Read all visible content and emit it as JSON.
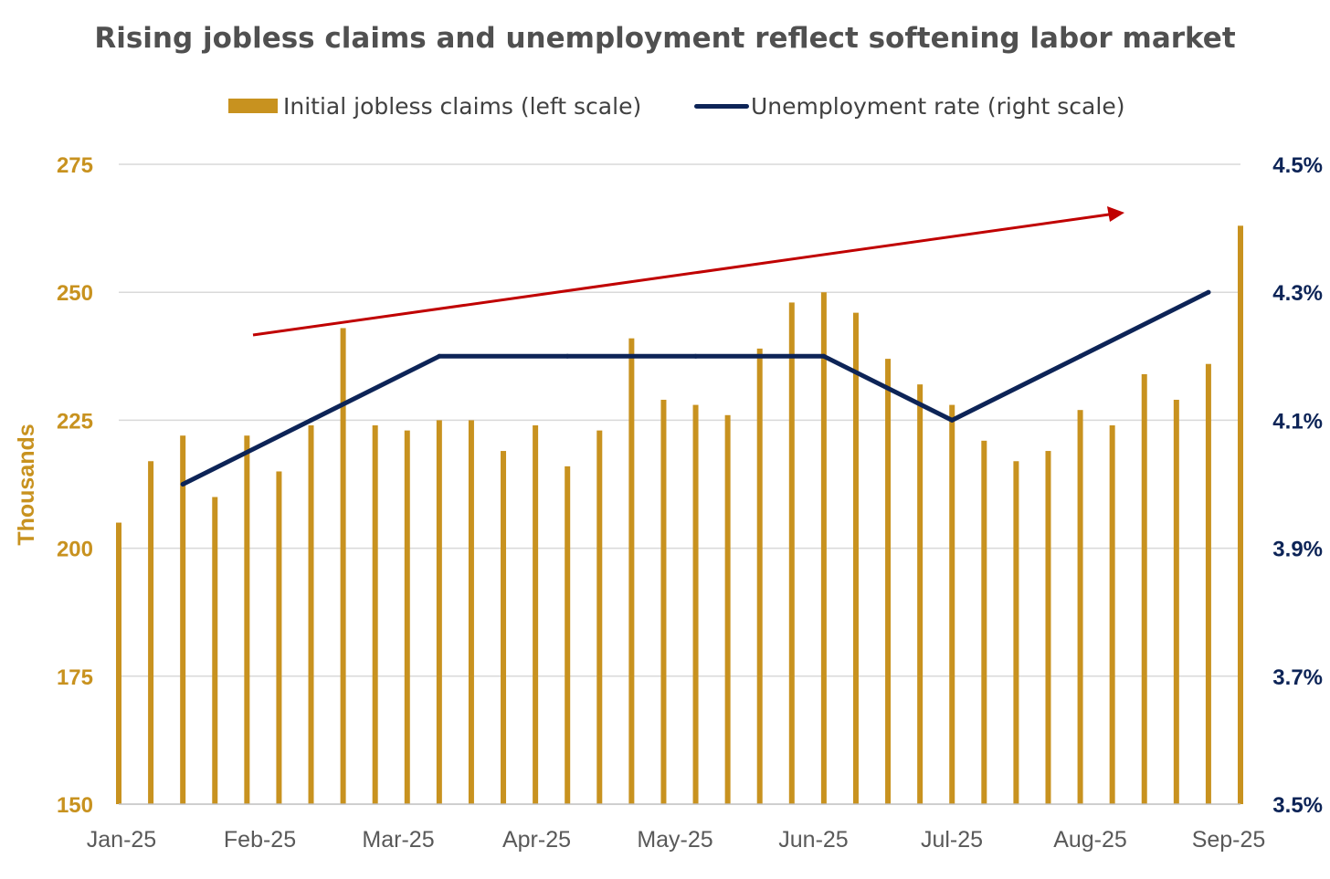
{
  "chart_data": {
    "type": "bar",
    "title": "Rising jobless claims and unemployment reflect softening labor market",
    "ylabel": "Thousands",
    "ylim": [
      150,
      275
    ],
    "y2lim": [
      3.5,
      4.5
    ],
    "left_ticks": [
      "150",
      "175",
      "200",
      "225",
      "250",
      "275"
    ],
    "right_ticks": [
      "3.5%",
      "3.7%",
      "3.9%",
      "4.1%",
      "4.3%",
      "4.5%"
    ],
    "x_tick_labels": [
      "Jan-25",
      "Feb-25",
      "Mar-25",
      "Apr-25",
      "May-25",
      "Jun-25",
      "Jul-25",
      "Aug-25",
      "Sep-25"
    ],
    "grid": true,
    "legend_position": "top",
    "colors": {
      "bars": "#C8921F",
      "line": "#0D2457",
      "trend_arrow": "#C00000",
      "left_axis": "#C8921F",
      "right_axis": "#0D2457"
    },
    "series": [
      {
        "name": "Initial jobless claims (left scale)",
        "type": "bar",
        "axis": "left",
        "x": [
          "2025-01-04",
          "2025-01-11",
          "2025-01-18",
          "2025-01-25",
          "2025-02-01",
          "2025-02-08",
          "2025-02-15",
          "2025-02-22",
          "2025-03-01",
          "2025-03-08",
          "2025-03-15",
          "2025-03-22",
          "2025-03-29",
          "2025-04-05",
          "2025-04-12",
          "2025-04-19",
          "2025-04-26",
          "2025-05-03",
          "2025-05-10",
          "2025-05-17",
          "2025-05-24",
          "2025-05-31",
          "2025-06-07",
          "2025-06-14",
          "2025-06-21",
          "2025-06-28",
          "2025-07-05",
          "2025-07-12",
          "2025-07-19",
          "2025-07-26",
          "2025-08-02",
          "2025-08-09",
          "2025-08-16",
          "2025-08-23",
          "2025-08-30",
          "2025-09-06"
        ],
        "values": [
          205,
          217,
          222,
          210,
          222,
          215,
          224,
          243,
          224,
          223,
          225,
          225,
          219,
          224,
          216,
          223,
          241,
          229,
          228,
          226,
          239,
          248,
          250,
          246,
          237,
          232,
          228,
          221,
          217,
          219,
          227,
          224,
          234,
          229,
          236,
          263
        ]
      },
      {
        "name": "Unemployment rate (right scale)",
        "type": "line",
        "axis": "right",
        "x": [
          "2025-01-18",
          "2025-02-15",
          "2025-03-15",
          "2025-04-12",
          "2025-05-10",
          "2025-06-07",
          "2025-07-05",
          "2025-08-02",
          "2025-08-30"
        ],
        "values": [
          4.0,
          4.1,
          4.2,
          4.2,
          4.2,
          4.2,
          4.1,
          4.2,
          4.3
        ]
      }
    ]
  }
}
